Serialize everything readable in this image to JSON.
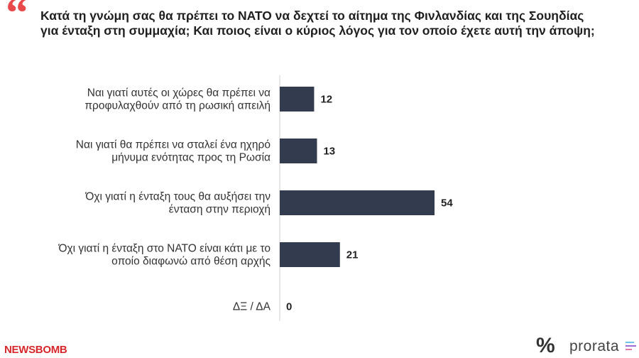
{
  "header": {
    "quote_mark": "“",
    "title": "Κατά τη γνώμη σας θα πρέπει το ΝΑΤΟ να δεχτεί το αίτημα της Φινλανδίας και της Σουηδίας για ένταξη στη συμμαχία; Και ποιος είναι ο κύριος λόγος για τον οποίο έχετε αυτή την άποψη;"
  },
  "chart_data": {
    "type": "bar",
    "orientation": "horizontal",
    "categories": [
      [
        "Ναι γιατί αυτές οι χώρες θα πρέπει να",
        "προφυλαχθούν από τη ρωσική απειλή"
      ],
      [
        "Ναι γιατί θα πρέπει να σταλεί ένα ηχηρό",
        "μήνυμα ενότητας προς τη Ρωσία"
      ],
      [
        "Όχι γιατί η ένταξη τους θα αυξήσει την",
        "ένταση στην περιοχή"
      ],
      [
        "Όχι γιατί η ένταξη στο ΝΑΤΟ είναι κάτι με το",
        "οποίο διαφωνώ από θέση αρχής"
      ],
      [
        "ΔΞ / ΔΑ"
      ]
    ],
    "values": [
      12,
      13,
      54,
      21,
      0
    ],
    "value_labels": [
      "12",
      "13",
      "54",
      "21",
      "0"
    ],
    "bar_color": "#333c4e",
    "xlim": [
      0,
      60
    ],
    "grid": false,
    "legend": "none"
  },
  "footer": {
    "newsbomb_brand": "NEWSBOMB",
    "prorata_symbol": "%",
    "prorata_brand": "prorata",
    "brand_red": "#d7262a"
  }
}
